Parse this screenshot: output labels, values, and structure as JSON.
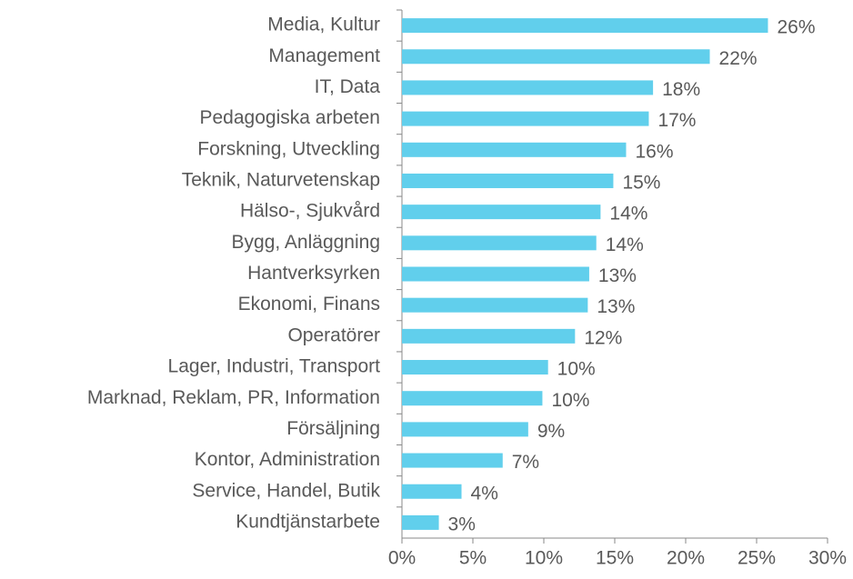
{
  "chart_data": {
    "type": "barh",
    "categories": [
      "Media, Kultur",
      "Management",
      "IT, Data",
      "Pedagogiska arbeten",
      "Forskning, Utveckling",
      "Teknik, Naturvetenskap",
      "Hälso-, Sjukvård",
      "Bygg, Anläggning",
      "Hantverksyrken",
      "Ekonomi, Finans",
      "Operatörer",
      "Lager, Industri, Transport",
      "Marknad, Reklam, PR, Information",
      "Försäljning",
      "Kontor, Administration",
      "Service, Handel, Butik",
      "Kundtjänstarbete"
    ],
    "values": [
      25.8,
      21.7,
      17.7,
      17.4,
      15.8,
      14.9,
      14.0,
      13.7,
      13.2,
      13.1,
      12.2,
      10.3,
      9.9,
      8.9,
      7.1,
      4.2,
      2.6
    ],
    "value_labels": [
      "26%",
      "22%",
      "18%",
      "17%",
      "16%",
      "15%",
      "14%",
      "14%",
      "13%",
      "13%",
      "12%",
      "10%",
      "10%",
      "9%",
      "7%",
      "4%",
      "3%"
    ],
    "color": "#61cfec",
    "xlim": [
      0,
      30
    ],
    "xticks": [
      {
        "value": 0,
        "label": "0%"
      },
      {
        "value": 5,
        "label": "5%"
      },
      {
        "value": 10,
        "label": "10%"
      },
      {
        "value": 15,
        "label": "15%"
      },
      {
        "value": 20,
        "label": "20%"
      },
      {
        "value": 25,
        "label": "25%"
      },
      {
        "value": 30,
        "label": "30%"
      }
    ],
    "grid": false
  }
}
